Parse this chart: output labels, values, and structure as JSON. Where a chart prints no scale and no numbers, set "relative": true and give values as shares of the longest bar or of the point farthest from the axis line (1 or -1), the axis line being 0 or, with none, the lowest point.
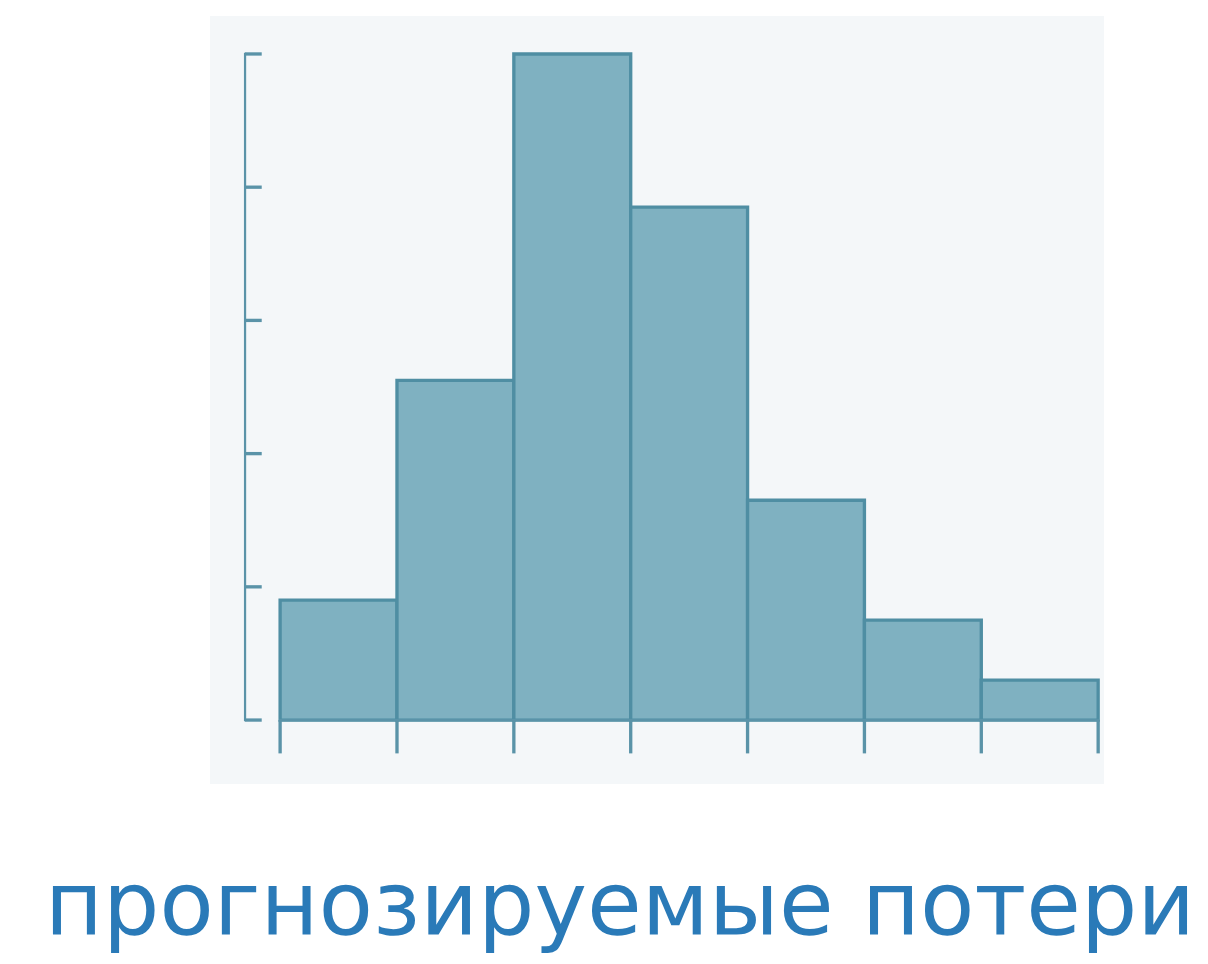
{
  "chart_data": {
    "type": "bar",
    "relative": true,
    "xlabel": "прогнозируемые потери",
    "categories": [
      null,
      null,
      null,
      null,
      null,
      null,
      null
    ],
    "values": [
      0.18,
      0.51,
      1,
      0.77,
      0.33,
      0.15,
      0.06
    ],
    "color": "#7fb1c1",
    "grid": false
  }
}
